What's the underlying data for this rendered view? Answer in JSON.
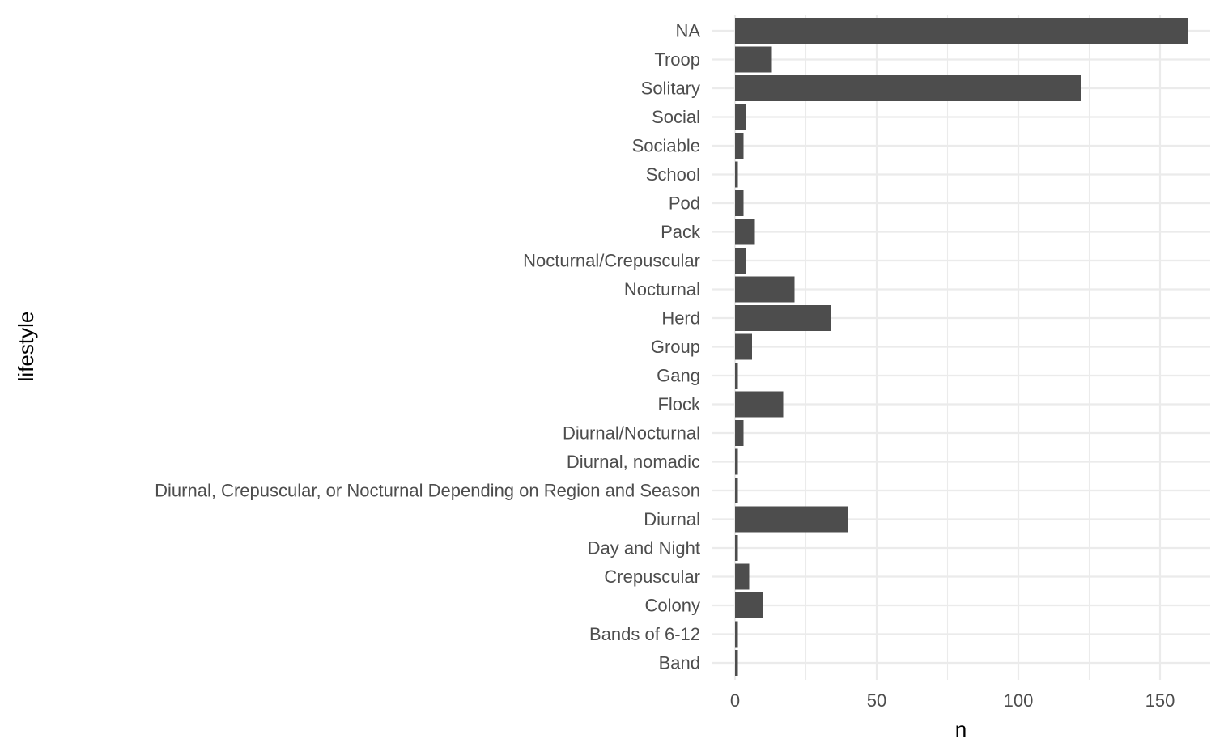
{
  "chart_data": {
    "type": "bar",
    "orientation": "horizontal",
    "xlabel": "n",
    "ylabel": "lifestyle",
    "xlim": [
      0,
      160
    ],
    "x_ticks": [
      0,
      50,
      100,
      150
    ],
    "grid": true,
    "bar_color": "#4d4d4d",
    "categories": [
      "NA",
      "Troop",
      "Solitary",
      "Social",
      "Sociable",
      "School",
      "Pod",
      "Pack",
      "Nocturnal/Crepuscular",
      "Nocturnal",
      "Herd",
      "Group",
      "Gang",
      "Flock",
      "Diurnal/Nocturnal",
      "Diurnal, nomadic",
      "Diurnal, Crepuscular, or Nocturnal Depending on Region and Season",
      "Diurnal",
      "Day and Night",
      "Crepuscular",
      "Colony",
      "Bands of 6-12",
      "Band"
    ],
    "values": [
      160,
      13,
      122,
      4,
      3,
      1,
      3,
      7,
      4,
      21,
      34,
      6,
      1,
      17,
      3,
      1,
      1,
      40,
      1,
      5,
      10,
      1,
      1
    ]
  }
}
